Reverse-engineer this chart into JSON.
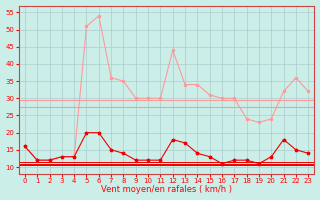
{
  "x": [
    0,
    1,
    2,
    3,
    4,
    5,
    6,
    7,
    8,
    9,
    10,
    11,
    12,
    13,
    14,
    15,
    16,
    17,
    18,
    19,
    20,
    21,
    22,
    23
  ],
  "rafales": [
    16,
    12,
    12,
    13,
    13,
    51,
    54,
    36,
    35,
    30,
    30,
    30,
    44,
    34,
    34,
    31,
    30,
    30,
    24,
    23,
    24,
    32,
    36,
    32
  ],
  "moyen": [
    16,
    12,
    12,
    13,
    13,
    20,
    20,
    15,
    14,
    12,
    12,
    12,
    18,
    17,
    14,
    13,
    11,
    12,
    12,
    11,
    13,
    18,
    15,
    14
  ],
  "hline_pink1": 29.5,
  "hline_pink2": 27.5,
  "hline_red1": 11.5,
  "hline_red2": 11.0,
  "hline_red3": 10.5,
  "bg_color": "#cceee8",
  "grid_color": "#aacccc",
  "line_rafales_color": "#ff9999",
  "line_moyen_color": "#ee0000",
  "hline_pink_color": "#ff9999",
  "hline_red_color": "#ee0000",
  "xlabel": "Vent moyen/en rafales ( km/h )",
  "ylim_min": 8,
  "ylim_max": 57,
  "yticks": [
    10,
    15,
    20,
    25,
    30,
    35,
    40,
    45,
    50,
    55
  ],
  "xticks": [
    0,
    1,
    2,
    3,
    4,
    5,
    6,
    7,
    8,
    9,
    10,
    11,
    12,
    13,
    14,
    15,
    16,
    17,
    18,
    19,
    20,
    21,
    22,
    23
  ],
  "tick_fontsize": 5,
  "xlabel_fontsize": 6
}
